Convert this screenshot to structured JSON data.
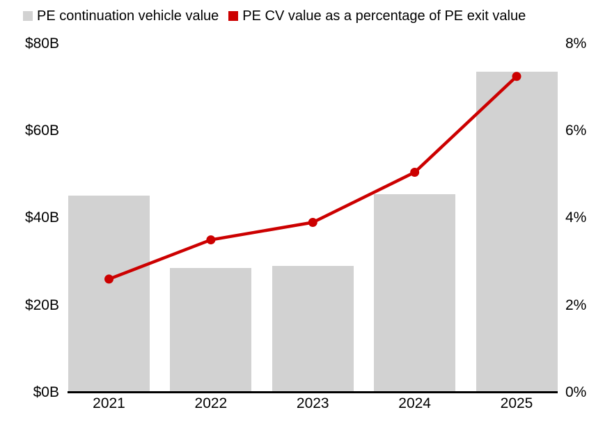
{
  "chart_data": {
    "type": "bar",
    "subtype": "combo-bar-line",
    "title": "",
    "categories": [
      "2021",
      "2022",
      "2023",
      "2024",
      "2025"
    ],
    "series": [
      {
        "name": "PE continuation vehicle value",
        "type": "bar",
        "axis": "left",
        "unit": "billions USD",
        "color": "#d2d2d2",
        "values": [
          45.1,
          28.5,
          29.0,
          45.4,
          73.5
        ]
      },
      {
        "name": "PE CV value as a percentage of PE exit value",
        "type": "line",
        "axis": "right",
        "unit": "percent",
        "color": "#cc0000",
        "values": [
          2.6,
          3.5,
          3.9,
          5.05,
          7.25
        ]
      }
    ],
    "left_axis": {
      "min": 0,
      "max": 80,
      "tick_labels": [
        "$80B",
        "$60B",
        "$40B",
        "$20B",
        "$0B"
      ]
    },
    "right_axis": {
      "min": 0,
      "max": 8,
      "tick_labels": [
        "8%",
        "6%",
        "4%",
        "2%",
        "0%"
      ]
    },
    "xlabel": "",
    "ylabel": "",
    "grid": false,
    "legend_position": "top-left",
    "axis_line_color": "#000000",
    "text_color": "#000000"
  }
}
